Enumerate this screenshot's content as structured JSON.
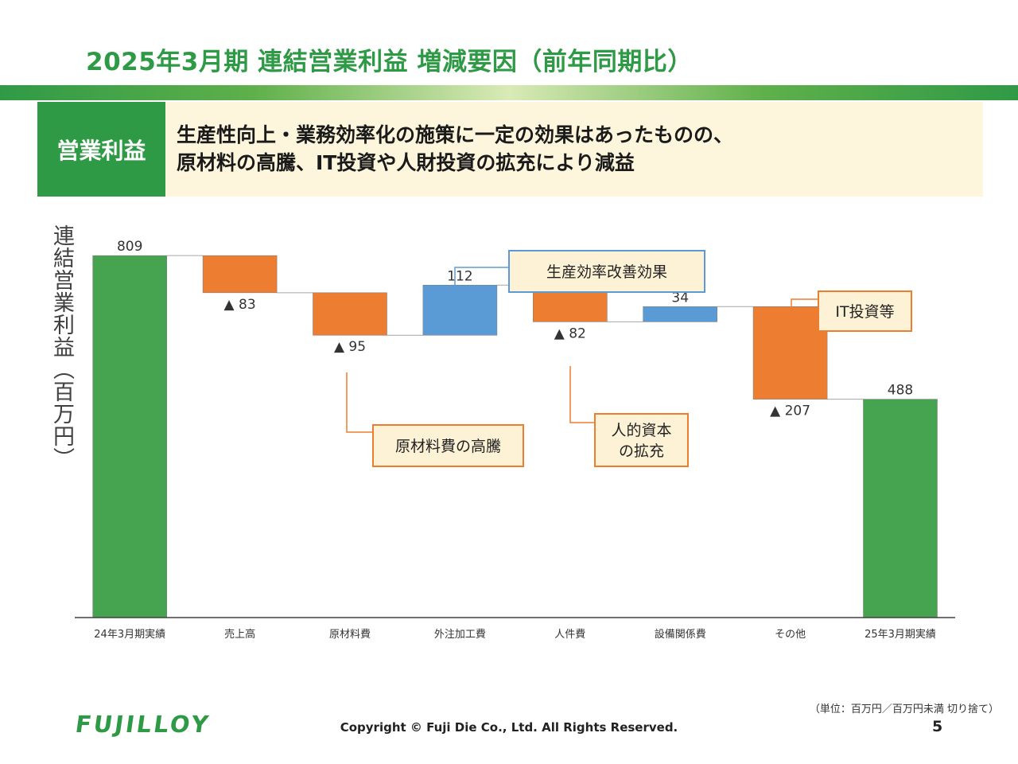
{
  "title": "2025年3月期 連結営業利益 増減要因（前年同期比）",
  "summary": {
    "label": "営業利益",
    "line1": "生産性向上・業務効率化の施策に一定の効果はあったものの、",
    "line2": "原材料の高騰、IT投資や人財投資の拡充により減益"
  },
  "chart_data": {
    "type": "bar",
    "subtype": "waterfall",
    "ylabel": "連結営業利益（百万円）",
    "categories": [
      "24年3月期実績",
      "売上高",
      "原材料費",
      "外注加工費",
      "人件費",
      "設備関係費",
      "その他",
      "25年3月期実績"
    ],
    "values": [
      809,
      -83,
      -95,
      112,
      -82,
      34,
      -207,
      488
    ],
    "kinds": [
      "total",
      "delta",
      "delta",
      "delta",
      "delta",
      "delta",
      "delta",
      "total"
    ],
    "value_labels": [
      "809",
      "▲ 83",
      "▲ 95",
      "112",
      "▲ 82",
      "34",
      "▲ 207",
      "488"
    ],
    "ylim": [
      0,
      900
    ],
    "colors": {
      "total": "#46a34f",
      "decrease": "#ed7d31",
      "increase": "#5b9bd5"
    },
    "annotations": [
      {
        "text": "生産効率改善効果",
        "target": "外注加工費",
        "color": "#5b9bd5"
      },
      {
        "text": "IT投資等",
        "target": "その他",
        "color": "#ed7d31"
      },
      {
        "text": "原材料費の高騰",
        "target": "原材料費",
        "color": "#ed7d31"
      },
      {
        "text": "人的資本|の拡充",
        "target": "人件費",
        "color": "#ed7d31"
      }
    ]
  },
  "footer": {
    "logo": "FUJILLOY",
    "unit_note": "（単位：百万円／百万円未満 切り捨て）",
    "copyright": "Copyright © Fuji Die Co., Ltd. All Rights Reserved.",
    "page": "5"
  }
}
